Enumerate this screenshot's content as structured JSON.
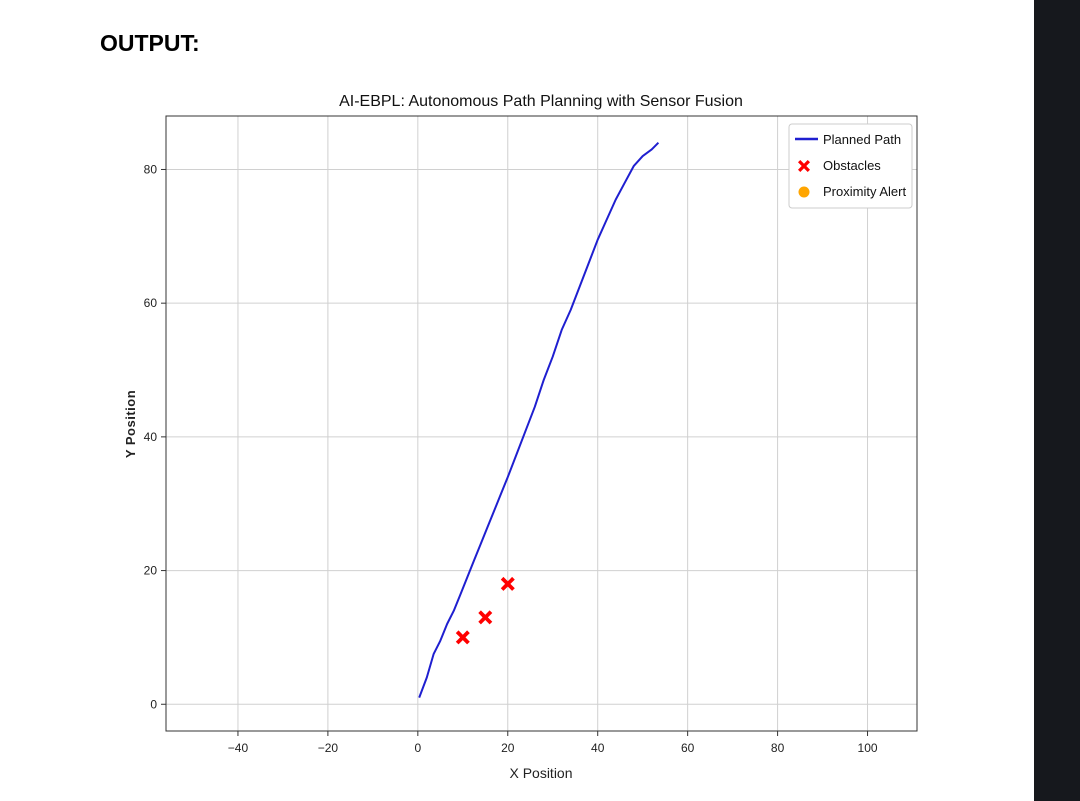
{
  "page": {
    "heading": "OUTPUT:"
  },
  "chart_data": {
    "type": "line",
    "title": "AI-EBPL: Autonomous Path Planning with Sensor Fusion",
    "xlabel": "X Position",
    "ylabel": "Y Position",
    "xlim": [
      -56,
      111
    ],
    "ylim": [
      -4,
      88
    ],
    "xticks": [
      -40,
      -20,
      0,
      20,
      40,
      60,
      80,
      100
    ],
    "yticks": [
      0,
      20,
      40,
      60,
      80
    ],
    "grid": true,
    "legend_position": "top-right",
    "series": [
      {
        "name": "Planned Path",
        "kind": "line",
        "color": "#1f1fd0",
        "x": [
          0.3,
          2,
          3.5,
          5,
          6.5,
          8,
          9.5,
          11,
          12.5,
          14,
          15.5,
          17,
          18.5,
          20,
          22,
          24,
          26,
          28,
          30,
          32,
          34,
          36,
          38,
          40,
          42,
          44,
          46,
          48,
          50,
          52,
          53.5
        ],
        "y": [
          1,
          4,
          7.5,
          9.5,
          12,
          14,
          16.5,
          19,
          21.5,
          24,
          26.5,
          29,
          31.5,
          34,
          37.5,
          41,
          44.5,
          48.5,
          52,
          56,
          59,
          62.5,
          66,
          69.5,
          72.5,
          75.5,
          78,
          80.5,
          82,
          83,
          84
        ]
      },
      {
        "name": "Obstacles",
        "kind": "marker",
        "marker": "X",
        "color": "#ff0000",
        "points": [
          {
            "x": 10,
            "y": 10
          },
          {
            "x": 15,
            "y": 13
          },
          {
            "x": 20,
            "y": 18
          }
        ]
      },
      {
        "name": "Proximity Alert",
        "kind": "marker",
        "marker": "circle",
        "color": "#ffa500",
        "points": []
      }
    ]
  }
}
